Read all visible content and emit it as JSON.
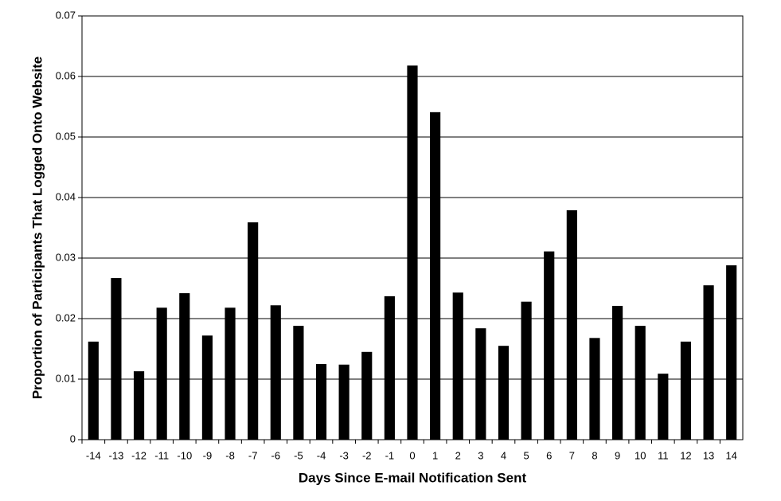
{
  "chart_data": {
    "type": "bar",
    "xlabel": "Days Since E-mail Notification Sent",
    "ylabel": "Proportion of Participants That Logged Onto Website",
    "categories": [
      "-14",
      "-13",
      "-12",
      "-11",
      "-10",
      "-9",
      "-8",
      "-7",
      "-6",
      "-5",
      "-4",
      "-3",
      "-2",
      "-1",
      "0",
      "1",
      "2",
      "3",
      "4",
      "5",
      "6",
      "7",
      "8",
      "9",
      "10",
      "11",
      "12",
      "13",
      "14"
    ],
    "values": [
      0.0162,
      0.0267,
      0.0113,
      0.0218,
      0.0242,
      0.0172,
      0.0218,
      0.0359,
      0.0222,
      0.0188,
      0.0125,
      0.0124,
      0.0145,
      0.0237,
      0.0618,
      0.0541,
      0.0243,
      0.0184,
      0.0155,
      0.0228,
      0.0311,
      0.0379,
      0.0168,
      0.0221,
      0.0188,
      0.0109,
      0.0162,
      0.0255,
      0.0288
    ],
    "color": "#000000",
    "ylim": [
      0,
      0.07
    ],
    "yticks": [
      0,
      0.01,
      0.02,
      0.03,
      0.04,
      0.05,
      0.06,
      0.07
    ],
    "grid": true
  }
}
